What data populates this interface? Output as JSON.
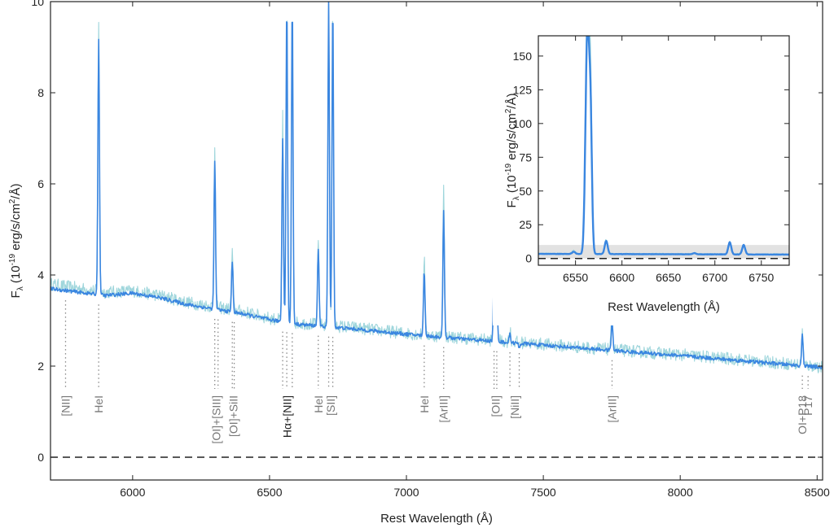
{
  "chart_data": [
    {
      "type": "line",
      "title": "",
      "xlabel": "Rest Wavelength (Å)",
      "ylabel": "F_λ (10^-19 erg/s/cm^2/Å)",
      "ylabel_parts": {
        "pre": "F",
        "sub": "λ",
        "mid": " (10",
        "sup1": "-19",
        "mid2": " erg/s/cm",
        "sup2": "2",
        "post": "/Å)"
      },
      "xlim": [
        5700,
        8520
      ],
      "ylim": [
        -0.5,
        10
      ],
      "xticks": [
        6000,
        6500,
        7000,
        7500,
        8000,
        8500
      ],
      "yticks": [
        0,
        2,
        4,
        6,
        8,
        10
      ],
      "zero_line": true,
      "colors": {
        "model": "#3a86e0",
        "data": "#9fd6dc",
        "markers": "#888888",
        "zero": "#222222"
      },
      "series": [
        {
          "style": "data-noisy",
          "continuum": [
            [
              5700,
              3.8
            ],
            [
              5900,
              3.62
            ],
            [
              6000,
              3.65
            ],
            [
              6100,
              3.55
            ],
            [
              6200,
              3.4
            ],
            [
              6400,
              3.2
            ],
            [
              6500,
              3.05
            ],
            [
              6600,
              2.95
            ],
            [
              6800,
              2.85
            ],
            [
              7000,
              2.72
            ],
            [
              7200,
              2.62
            ],
            [
              7500,
              2.48
            ],
            [
              7800,
              2.34
            ],
            [
              8000,
              2.25
            ],
            [
              8200,
              2.15
            ],
            [
              8400,
              2.05
            ],
            [
              8520,
              1.98
            ]
          ],
          "emission_peaks": [
            [
              5876,
              9.6
            ],
            [
              6300,
              6.9
            ],
            [
              6364,
              4.5
            ],
            [
              6548,
              7.5
            ],
            [
              6563,
              10
            ],
            [
              6583,
              10
            ],
            [
              6678,
              4.7
            ],
            [
              6716,
              10
            ],
            [
              6731,
              10
            ],
            [
              7065,
              4.4
            ],
            [
              7136,
              6.1
            ],
            [
              7320,
              4.0
            ],
            [
              7330,
              3.7
            ],
            [
              7378,
              2.8
            ],
            [
              7412,
              2.5
            ],
            [
              7751,
              3.2
            ],
            [
              8446,
              2.8
            ]
          ]
        },
        {
          "style": "model",
          "continuum": [
            [
              5700,
              3.7
            ],
            [
              5900,
              3.55
            ],
            [
              6000,
              3.6
            ],
            [
              6100,
              3.5
            ],
            [
              6200,
              3.35
            ],
            [
              6400,
              3.15
            ],
            [
              6500,
              3.02
            ],
            [
              6600,
              2.92
            ],
            [
              6800,
              2.82
            ],
            [
              7000,
              2.7
            ],
            [
              7200,
              2.6
            ],
            [
              7500,
              2.46
            ],
            [
              7800,
              2.32
            ],
            [
              8000,
              2.23
            ],
            [
              8200,
              2.13
            ],
            [
              8400,
              2.03
            ],
            [
              8520,
              1.97
            ]
          ],
          "emission_peaks": [
            [
              5876,
              9.2
            ],
            [
              6300,
              6.5
            ],
            [
              6364,
              4.3
            ],
            [
              6548,
              7.0
            ],
            [
              6563,
              10
            ],
            [
              6583,
              10
            ],
            [
              6678,
              4.6
            ],
            [
              6716,
              10
            ],
            [
              6731,
              10
            ],
            [
              7065,
              4.1
            ],
            [
              7136,
              5.4
            ],
            [
              7320,
              3.9
            ],
            [
              7330,
              3.6
            ],
            [
              7378,
              2.7
            ],
            [
              7412,
              2.4
            ],
            [
              7751,
              3.0
            ],
            [
              8446,
              2.7
            ]
          ]
        }
      ],
      "line_markers": [
        {
          "label": "[NII]",
          "x": [
            5755
          ]
        },
        {
          "label": "HeI",
          "x": [
            5876
          ]
        },
        {
          "label": "[OI]+[SIII]",
          "x": [
            6300,
            6312
          ]
        },
        {
          "label": "[OI]+SiII",
          "x": [
            6364,
            6371
          ]
        },
        {
          "label": "Hα+[NII]",
          "x": [
            6548,
            6563,
            6583
          ],
          "emphasis": true
        },
        {
          "label": "HeI",
          "x": [
            6678
          ]
        },
        {
          "label": "[SII]",
          "x": [
            6716,
            6731
          ]
        },
        {
          "label": "HeI",
          "x": [
            7065
          ]
        },
        {
          "label": "[ArIII]",
          "x": [
            7136
          ]
        },
        {
          "label": "[OII]",
          "x": [
            7320,
            7330
          ]
        },
        {
          "label": "[NiII]",
          "x": [
            7378,
            7412
          ]
        },
        {
          "label": "[ArIII]",
          "x": [
            7751
          ]
        },
        {
          "label": "OI+P18",
          "x": [
            8446
          ]
        },
        {
          "label": "P17",
          "x": [
            8467
          ]
        }
      ]
    },
    {
      "type": "line",
      "title": "",
      "xlabel": "Rest Wavelength (Å)",
      "ylabel": "F_λ (10^-19 erg/s/cm^2/Å)",
      "xlim": [
        6510,
        6780
      ],
      "ylim": [
        -5,
        165
      ],
      "xticks": [
        6550,
        6600,
        6650,
        6700,
        6750
      ],
      "yticks": [
        0,
        25,
        50,
        75,
        100,
        125,
        150
      ],
      "zero_line": true,
      "shaded_band": [
        0,
        10
      ],
      "colors": {
        "model": "#3a86e0",
        "data": "#9fd6dc",
        "band": "#e2e2e2"
      },
      "series": [
        {
          "style": "data",
          "continuum": [
            [
              6510,
              3.5
            ],
            [
              6780,
              3.0
            ]
          ],
          "emission_peaks": [
            [
              6548,
              6
            ],
            [
              6561,
              60
            ],
            [
              6563,
              155
            ],
            [
              6566,
              130
            ],
            [
              6583,
              14
            ],
            [
              6678,
              4
            ],
            [
              6716,
              12
            ],
            [
              6731,
              10
            ]
          ]
        },
        {
          "style": "model",
          "continuum": [
            [
              6510,
              3.4
            ],
            [
              6780,
              2.9
            ]
          ],
          "emission_peaks": [
            [
              6548,
              5
            ],
            [
              6561,
              55
            ],
            [
              6563,
              132
            ],
            [
              6566,
              110
            ],
            [
              6583,
              13
            ],
            [
              6678,
              4
            ],
            [
              6716,
              12
            ],
            [
              6731,
              10
            ]
          ]
        }
      ]
    }
  ]
}
